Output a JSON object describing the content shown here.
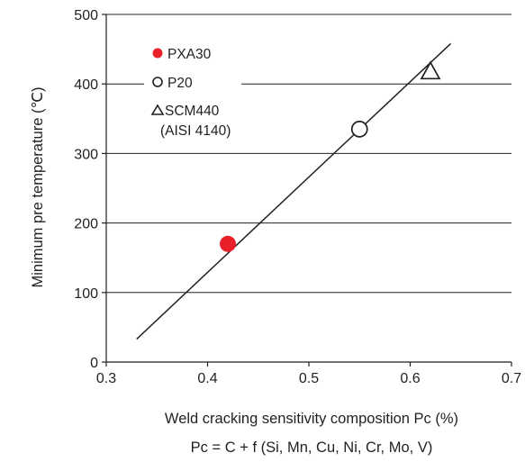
{
  "chart_data": {
    "type": "scatter",
    "title": "",
    "xlabel": "Weld cracking sensitivity composition Pc (%)",
    "ylabel": "Minimum pre temperature (℃)",
    "formula": "Pc = C + f (Si, Mn, Cu, Ni, Cr, Mo, V)",
    "xlim": [
      0.3,
      0.7
    ],
    "ylim": [
      0,
      500
    ],
    "xticks": [
      "0.3",
      "0.4",
      "0.5",
      "0.6",
      "0.7"
    ],
    "xtick_values": [
      0.3,
      0.4,
      0.5,
      0.6,
      0.7
    ],
    "yticks": [
      "0",
      "100",
      "200",
      "300",
      "400",
      "500"
    ],
    "ytick_values": [
      0,
      100,
      200,
      300,
      400,
      500
    ],
    "grid": "horizontal",
    "legend_position": "top-left",
    "series": [
      {
        "name": "PXA30",
        "marker": "filled-circle",
        "color": "#e8202a",
        "x": [
          0.42
        ],
        "y": [
          170
        ]
      },
      {
        "name": "P20",
        "marker": "open-circle",
        "color": "#231f20",
        "x": [
          0.55
        ],
        "y": [
          335
        ]
      },
      {
        "name": "SCM440",
        "name_line2": "(AISI 4140)",
        "marker": "open-triangle",
        "color": "#231f20",
        "x": [
          0.62
        ],
        "y": [
          418
        ]
      }
    ],
    "trend_line": {
      "x": [
        0.33,
        0.64
      ],
      "y": [
        33,
        458
      ]
    }
  }
}
